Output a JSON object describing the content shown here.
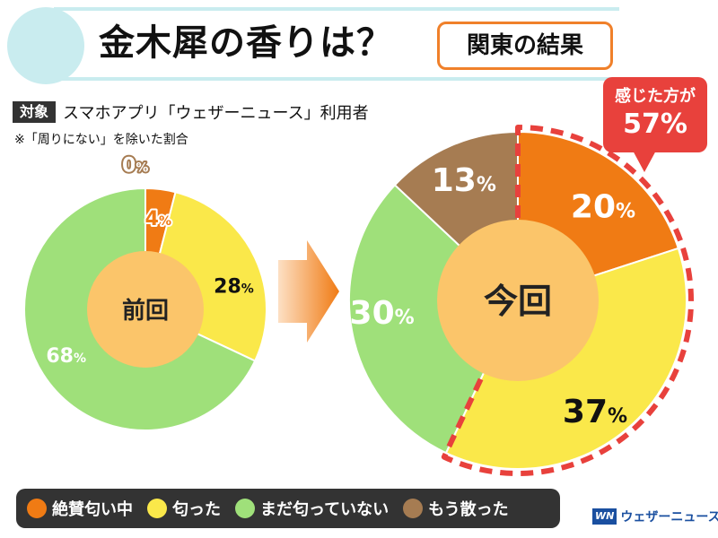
{
  "header": {
    "title": "金木犀の香りは？",
    "region": "関東の結果"
  },
  "target": {
    "tag": "対象",
    "text": "スマホアプリ「ウェザーニュース」利用者"
  },
  "note": "※「周りにない」を除いた割合",
  "callout": {
    "label": "感じた方が",
    "value": "57%"
  },
  "legend": [
    {
      "label": "絶賛匂い中",
      "color": "#f07b14"
    },
    {
      "label": "匂った",
      "color": "#fae84a"
    },
    {
      "label": "まだ匂っていない",
      "color": "#9fe07a"
    },
    {
      "label": "もう散った",
      "color": "#a67c52"
    }
  ],
  "brand": {
    "logo": "WN",
    "name": "ウェザーニュース"
  },
  "colors": {
    "inner_circle": "#fbc56a",
    "highlight_dash": "#e8413c"
  },
  "chart_data": [
    {
      "type": "pie",
      "center_label": "前回",
      "categories": [
        "絶賛匂い中",
        "匂った",
        "まだ匂っていない",
        "もう散った"
      ],
      "values": [
        4,
        28,
        68,
        0
      ],
      "labels": [
        "4",
        "28",
        "68",
        "0"
      ],
      "unit": "%"
    },
    {
      "type": "pie",
      "center_label": "今回",
      "categories": [
        "絶賛匂い中",
        "匂った",
        "まだ匂っていない",
        "もう散った"
      ],
      "values": [
        20,
        37,
        30,
        13
      ],
      "labels": [
        "20",
        "37",
        "30",
        "13"
      ],
      "unit": "%",
      "highlighted": [
        "絶賛匂い中",
        "匂った"
      ]
    }
  ]
}
